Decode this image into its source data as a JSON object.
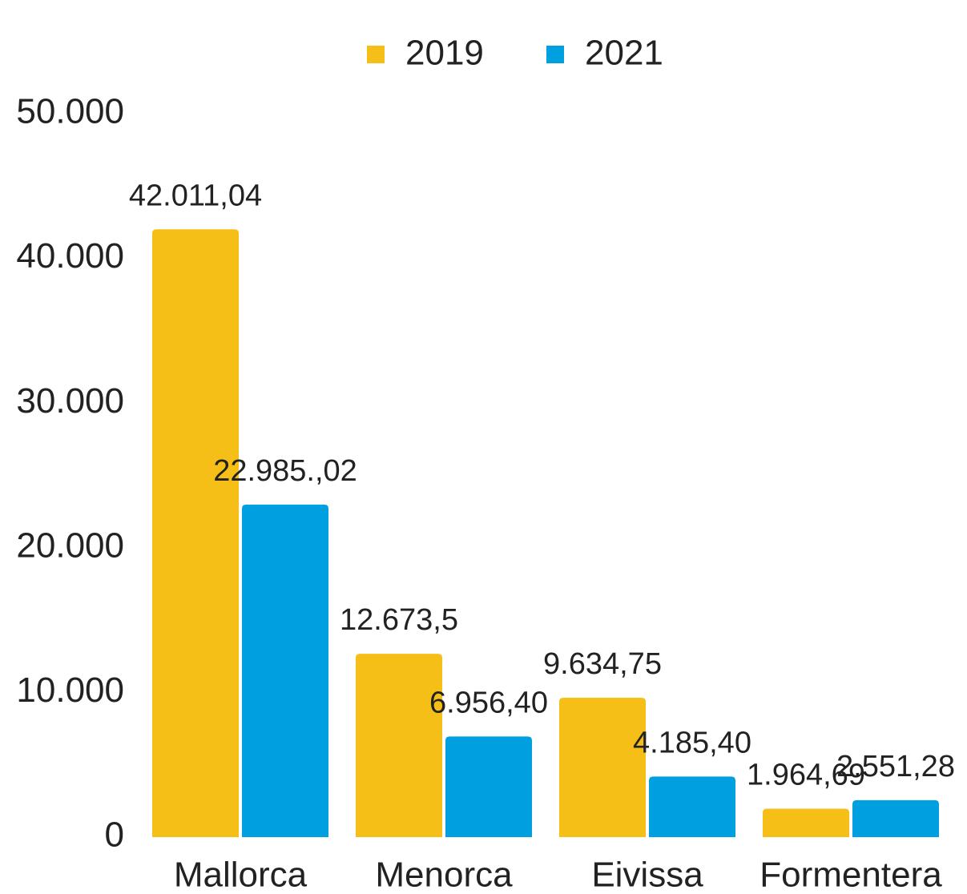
{
  "chart_data": {
    "type": "bar",
    "categories": [
      "Mallorca",
      "Menorca",
      "Eivissa",
      "Formentera"
    ],
    "series": [
      {
        "name": "2019",
        "color": "#f5bf17",
        "values": [
          42011.04,
          12673.5,
          9634.75,
          1964.69
        ],
        "value_labels": [
          "42.011,04",
          "12.673,5",
          "9.634,75",
          "1.964,69"
        ]
      },
      {
        "name": "2021",
        "color": "#009fe0",
        "values": [
          22985.02,
          6956.4,
          4185.4,
          2551.28
        ],
        "value_labels": [
          "22.985.,02",
          "6.956,40",
          "4.185,40",
          "2.551,28"
        ]
      }
    ],
    "ylim": [
      0,
      50000
    ],
    "yticks": [
      0,
      {
        "value": 10000,
        "label": "10.000"
      },
      {
        "value": 20000,
        "label": "20.000"
      },
      {
        "value": 30000,
        "label": "30.000"
      },
      {
        "value": 40000,
        "label": "40.000"
      },
      {
        "value": 50000,
        "label": "50.000"
      }
    ],
    "grid": false,
    "legend": "top"
  }
}
